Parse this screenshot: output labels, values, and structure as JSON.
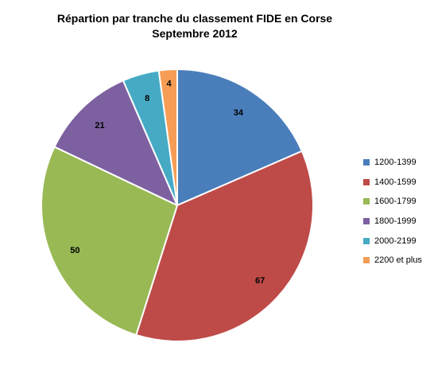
{
  "chart_data": {
    "type": "pie",
    "title": "Répartion par tranche du classement FIDE en Corse",
    "subtitle": "Septembre 2012",
    "categories": [
      "1200-1399",
      "1400-1599",
      "1600-1799",
      "1800-1999",
      "2000-2199",
      "2200 et plus"
    ],
    "values": [
      34,
      67,
      50,
      21,
      8,
      4
    ],
    "data_labels": [
      "34",
      "67",
      "50",
      "21",
      "8",
      "4"
    ],
    "colors": [
      "#4a7ebb",
      "#be4b48",
      "#98b954",
      "#7d60a0",
      "#46aac5",
      "#f59d56"
    ],
    "legend_position": "right",
    "start_angle_deg": 0,
    "direction": "clockwise"
  }
}
